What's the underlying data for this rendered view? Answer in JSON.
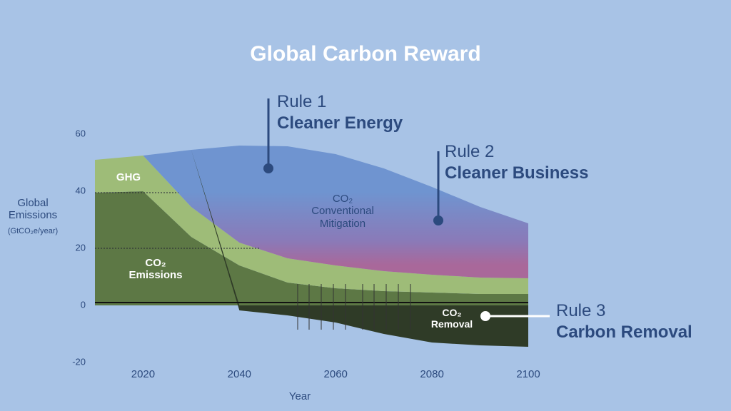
{
  "chart_data": {
    "type": "stacked-area",
    "title": "Global Carbon Reward",
    "y_label": "Global\nEmissions",
    "y_unit": "(GtCO₂e/year)",
    "x_label": "Year",
    "x": [
      2010,
      2020,
      2030,
      2040,
      2050,
      2060,
      2070,
      2080,
      2090,
      2100
    ],
    "xlim": [
      2010,
      2100
    ],
    "xticks": [
      2020,
      2040,
      2060,
      2080,
      2100
    ],
    "ylim": [
      -20,
      60
    ],
    "yticks": [
      -20,
      0,
      20,
      40,
      60
    ],
    "series": [
      {
        "name": "CO₂\nEmissions",
        "color": "#5d7845",
        "values": [
          39.5,
          40,
          24,
          14,
          8,
          6,
          5,
          4.5,
          4,
          4
        ]
      },
      {
        "name": "GHG",
        "color": "#9ebc78",
        "values": [
          11.5,
          12.5,
          10.5,
          8,
          8.5,
          8,
          7,
          6.25,
          5.75,
          5.5
        ]
      },
      {
        "name": "CO₂\nConventional\nMitigation",
        "color": "#6f94d0",
        "values": [
          0,
          0,
          20,
          34,
          39.25,
          39,
          36,
          30.75,
          24.75,
          19.25
        ]
      },
      {
        "name": "CO₂\nRemoval",
        "color": "#2f3b27",
        "values": [
          0,
          0,
          0,
          -1.75,
          -3.5,
          -6,
          -10,
          -13,
          -14,
          -14.5
        ]
      }
    ],
    "annotations": [
      {
        "rule": "Rule 1",
        "text": "Cleaner Energy"
      },
      {
        "rule": "Rule 2",
        "text": "Cleaner Business"
      },
      {
        "rule": "Rule 3",
        "text": "Carbon Removal"
      }
    ]
  }
}
